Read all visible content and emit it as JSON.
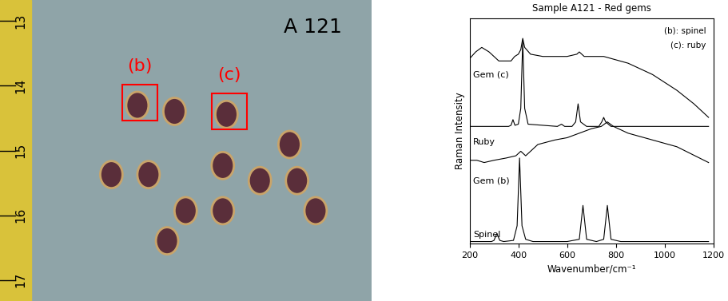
{
  "photo": {
    "label": "A 121",
    "markers": [
      "(b)",
      "(c)"
    ],
    "ruler": [
      13,
      14,
      15,
      16,
      17
    ]
  },
  "chart_data": {
    "type": "line",
    "title": "Sample A121 - Red gems",
    "x_label": "Wavenumber/cm⁻¹",
    "y_label": "Raman Intensity",
    "annotations": [
      "(b): spinel",
      "(c): ruby"
    ],
    "xlim": [
      200,
      1200
    ],
    "xticks": [
      200,
      400,
      600,
      800,
      1000,
      1200
    ],
    "ylim": [
      0,
      100
    ],
    "tick_labels": "x",
    "grid": false,
    "series": [
      {
        "name": "Gem (c)",
        "color": "#000000",
        "x": [
          200,
          225,
          250,
          280,
          320,
          350,
          370,
          385,
          400,
          410,
          418,
          426,
          450,
          500,
          600,
          640,
          650,
          670,
          750,
          850,
          950,
          1050,
          1120,
          1180
        ],
        "values": [
          82,
          85,
          87,
          85,
          81,
          81,
          81,
          83,
          84,
          86,
          91,
          87,
          84,
          83,
          83,
          84,
          85,
          83,
          83,
          80,
          75,
          68,
          62,
          56
        ]
      },
      {
        "name": "Ruby",
        "color": "#000000",
        "x": [
          200,
          360,
          370,
          378,
          386,
          400,
          410,
          418,
          426,
          440,
          560,
          577,
          590,
          620,
          635,
          645,
          655,
          680,
          730,
          742,
          750,
          758,
          780,
          1000,
          1180
        ],
        "values": [
          52,
          52,
          52.5,
          55,
          52.5,
          53,
          60,
          90,
          60,
          53,
          52,
          53,
          52,
          52,
          54,
          62,
          54,
          52,
          52,
          54,
          56,
          54,
          52,
          52,
          52
        ]
      },
      {
        "name": "Gem (b)",
        "color": "#000000",
        "x": [
          200,
          230,
          260,
          300,
          350,
          390,
          410,
          430,
          480,
          550,
          600,
          650,
          700,
          740,
          765,
          790,
          850,
          950,
          1050,
          1180
        ],
        "values": [
          37,
          37,
          36,
          37,
          38,
          39,
          41,
          39,
          44,
          46,
          47,
          49,
          51,
          52,
          54,
          52,
          49,
          46,
          43,
          36
        ]
      },
      {
        "name": "Spinel",
        "color": "#000000",
        "x": [
          200,
          290,
          300,
          312,
          324,
          340,
          380,
          395,
          405,
          415,
          430,
          460,
          600,
          650,
          665,
          680,
          720,
          750,
          765,
          780,
          820,
          1000,
          1180
        ],
        "values": [
          1,
          1,
          1.5,
          4.5,
          1.5,
          1,
          1.5,
          8,
          38,
          8,
          2,
          1,
          1,
          2,
          17,
          2,
          1,
          2,
          17,
          2,
          1,
          1,
          1
        ]
      }
    ]
  }
}
